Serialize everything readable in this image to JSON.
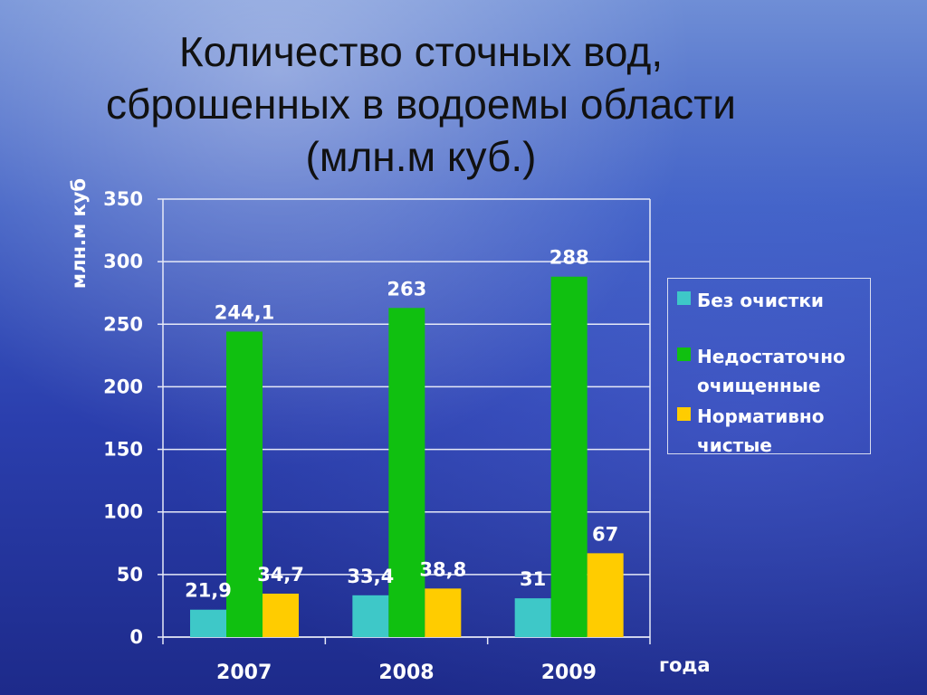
{
  "title_lines": [
    "Количество сточных вод,",
    "сброшенных в водоемы области",
    "(млн.м куб.)"
  ],
  "colors": {
    "series_1": "#3ec8c8",
    "series_2": "#10c010",
    "series_3": "#ffcc00"
  },
  "chart_data": {
    "type": "bar",
    "categories": [
      "2007",
      "2008",
      "2009"
    ],
    "series": [
      {
        "name": "Без очистки",
        "values": [
          21.9,
          33.4,
          31
        ],
        "labels": [
          "21,9",
          "33,4",
          "31"
        ]
      },
      {
        "name": "Недостаточно очищенные",
        "values": [
          244.1,
          263,
          288
        ],
        "labels": [
          "244,1",
          "263",
          "288"
        ]
      },
      {
        "name": "Нормативно чистые",
        "values": [
          34.7,
          38.8,
          67
        ],
        "labels": [
          "34,7",
          "38,8",
          "67"
        ]
      }
    ],
    "ylabel": "млн.м куб",
    "xlabel": "года",
    "ylim": [
      0,
      350
    ],
    "yticks": [
      0,
      50,
      100,
      150,
      200,
      250,
      300,
      350
    ],
    "grid": true,
    "legend_position": "right"
  },
  "legend": {
    "items": [
      {
        "lines": [
          "Без очистки"
        ]
      },
      {
        "lines": [
          "Недостаточно",
          "очищенные"
        ]
      },
      {
        "lines": [
          "Нормативно",
          "чистые"
        ]
      }
    ]
  }
}
